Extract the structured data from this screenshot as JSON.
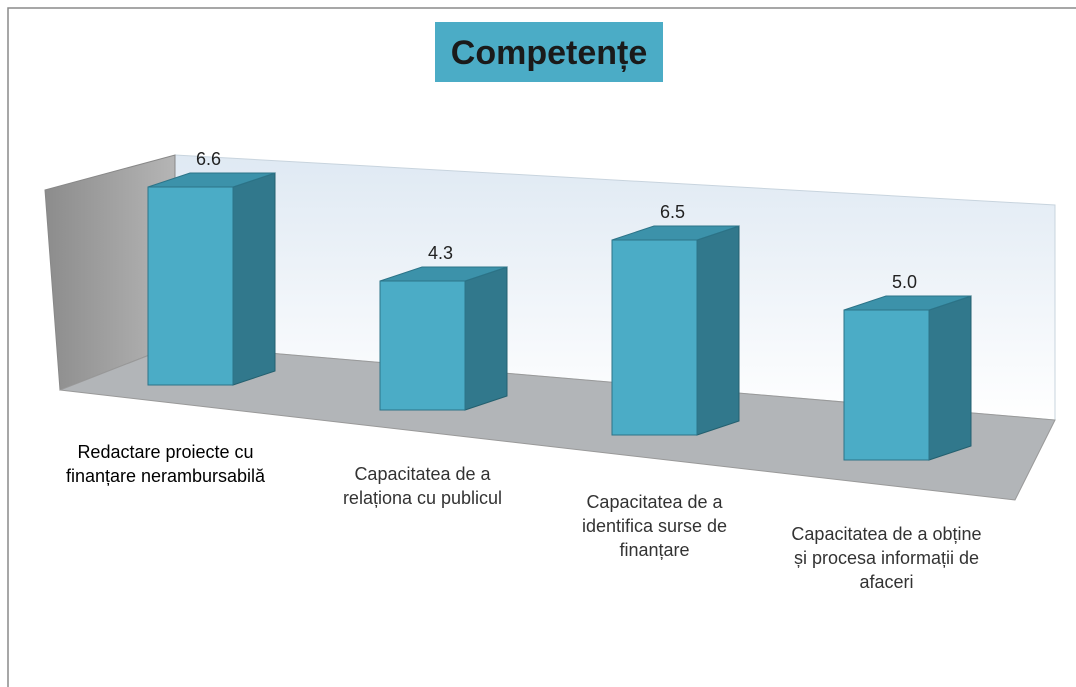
{
  "chart_data": {
    "type": "bar3d",
    "title": "Competențe",
    "categories": [
      "Redactare proiecte cu finanțare nerambursabilă",
      "Capacitatea de a relaționa cu publicul",
      "Capacitatea de a identifica surse de finanțare",
      "Capacitatea de a obține și procesa informații de afaceri"
    ],
    "values": [
      6.6,
      4.3,
      6.5,
      5.0
    ],
    "value_labels": [
      "6.6",
      "4.3",
      "6.5",
      "5.0"
    ],
    "color": "#4bacc6",
    "ylim": [
      0,
      8
    ]
  }
}
